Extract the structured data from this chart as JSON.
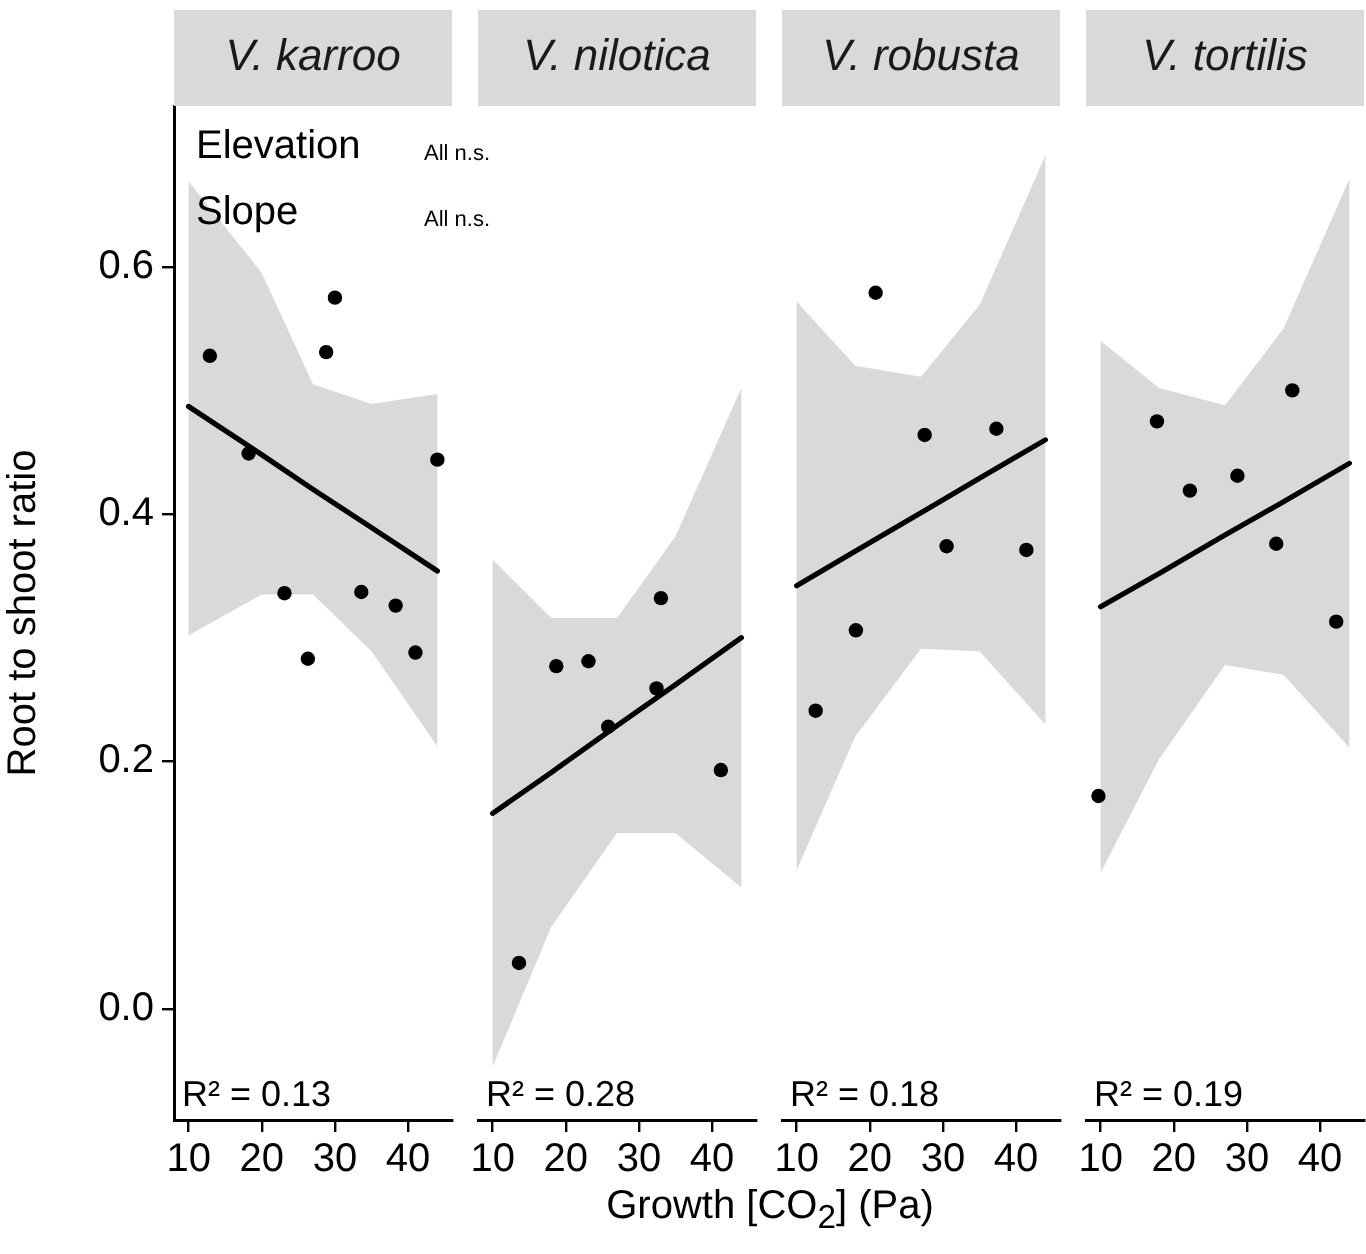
{
  "chart_data": [
    {
      "type": "scatter",
      "title": "V. karroo",
      "ylabel": "Root to shoot ratio",
      "xlabel": "Growth [CO$_{2}$] (Pa)",
      "annotations": [
        "Elevation",
        "All n.s.",
        "Slope",
        "All n.s.",
        "R² = 0.13"
      ],
      "xlim": [
        8,
        46
      ],
      "xticks": [
        10,
        20,
        30,
        40
      ],
      "ylim": [
        -0.09,
        0.73
      ],
      "yticks": [
        {
          "value": 0,
          "label": "0.0"
        },
        {
          "value": 0.2,
          "label": "0.2"
        },
        {
          "value": 0.4,
          "label": "0.4"
        },
        {
          "value": 0.6,
          "label": "0.6"
        }
      ],
      "marker": "circle",
      "series": [
        {
          "color": "#000000",
          "x": [
            12.9,
            18.2,
            23.1,
            26.3,
            28.8,
            30.0,
            33.6,
            38.3,
            41.0,
            44.0
          ],
          "values": [
            0.528,
            0.449,
            0.336,
            0.283,
            0.531,
            0.575,
            0.337,
            0.326,
            0.288,
            0.444
          ]
        },
        {
          "type": "line",
          "color": "#000000",
          "line_style": "solid",
          "marker": "none",
          "x": [
            10,
            20,
            27,
            35,
            44
          ],
          "values": [
            0.487,
            0.448,
            0.42,
            0.389,
            0.354
          ],
          "lower": [
            0.302,
            0.335,
            0.335,
            0.289,
            0.212
          ],
          "upper": [
            0.669,
            0.595,
            0.505,
            0.489,
            0.497
          ]
        }
      ]
    },
    {
      "type": "scatter",
      "title": "V. nilotica",
      "annotations": [
        "R² = 0.28"
      ],
      "xlim": [
        8,
        46
      ],
      "xticks": [
        10,
        20,
        30,
        40
      ],
      "ylim": [
        -0.09,
        0.73
      ],
      "tick_labels": "x",
      "marker": "circle",
      "series": [
        {
          "color": "#000000",
          "x": [
            13.6,
            18.7,
            23.1,
            25.8,
            32.4,
            33.0,
            41.2
          ],
          "values": [
            0.037,
            0.277,
            0.281,
            0.228,
            0.259,
            0.332,
            0.193
          ]
        },
        {
          "type": "line",
          "color": "#000000",
          "line_style": "solid",
          "x": [
            10,
            18,
            27,
            35,
            44
          ],
          "marker": "none",
          "values": [
            0.158,
            0.191,
            0.229,
            0.262,
            0.3
          ],
          "lower": [
            -0.047,
            0.066,
            0.142,
            0.142,
            0.098
          ],
          "upper": [
            0.363,
            0.316,
            0.316,
            0.382,
            0.502
          ]
        }
      ]
    },
    {
      "type": "scatter",
      "title": "V. robusta",
      "annotations": [
        "R² = 0.18"
      ],
      "xlim": [
        8,
        46
      ],
      "xticks": [
        10,
        20,
        30,
        40
      ],
      "ylim": [
        -0.09,
        0.73
      ],
      "tick_labels": "x",
      "marker": "circle",
      "series": [
        {
          "color": "#000000",
          "x": [
            12.6,
            18.1,
            20.8,
            27.5,
            30.5,
            37.3,
            41.4
          ],
          "values": [
            0.241,
            0.306,
            0.579,
            0.464,
            0.374,
            0.469,
            0.371
          ]
        },
        {
          "type": "line",
          "color": "#000000",
          "line_style": "solid",
          "x": [
            10,
            18,
            27,
            35,
            44
          ],
          "marker": "none",
          "values": [
            0.342,
            0.37,
            0.401,
            0.429,
            0.46
          ],
          "lower": [
            0.112,
            0.22,
            0.291,
            0.289,
            0.23
          ],
          "upper": [
            0.572,
            0.52,
            0.511,
            0.569,
            0.69
          ]
        }
      ]
    },
    {
      "type": "scatter",
      "title": "V. tortilis",
      "annotations": [
        "R² = 0.19"
      ],
      "xlim": [
        8,
        46
      ],
      "xticks": [
        10,
        20,
        30,
        40
      ],
      "ylim": [
        -0.09,
        0.73
      ],
      "tick_labels": "x",
      "marker": "circle",
      "series": [
        {
          "color": "#000000",
          "x": [
            9.7,
            17.7,
            22.2,
            28.7,
            34.0,
            36.2,
            42.2
          ],
          "values": [
            0.172,
            0.475,
            0.419,
            0.431,
            0.376,
            0.5,
            0.313
          ]
        },
        {
          "type": "line",
          "color": "#000000",
          "line_style": "solid",
          "x": [
            10,
            18,
            27,
            35,
            44
          ],
          "marker": "none",
          "values": [
            0.325,
            0.352,
            0.383,
            0.41,
            0.441
          ],
          "lower": [
            0.11,
            0.202,
            0.278,
            0.27,
            0.211
          ],
          "upper": [
            0.54,
            0.502,
            0.488,
            0.55,
            0.671
          ]
        }
      ]
    }
  ]
}
